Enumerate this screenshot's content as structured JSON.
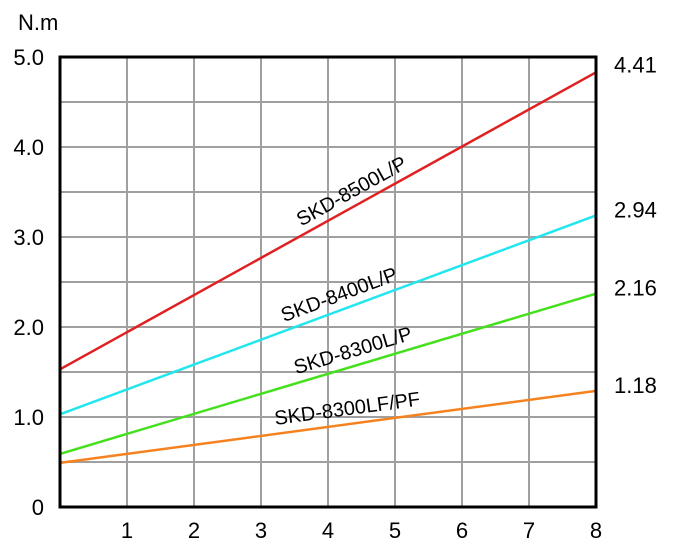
{
  "chart_data": {
    "type": "line",
    "ylabel": "N.m",
    "xlim": [
      0,
      8
    ],
    "ylim": [
      0,
      5
    ],
    "grid": true,
    "legend": "inline labels along lines",
    "x_ticks": [
      "1",
      "2",
      "3",
      "4",
      "5",
      "6",
      "7",
      "8"
    ],
    "y_ticks": [
      {
        "value": 0,
        "label": "0"
      },
      {
        "value": 1,
        "label": "1.0"
      },
      {
        "value": 2,
        "label": "2.0"
      },
      {
        "value": 3,
        "label": "3.0"
      },
      {
        "value": 4,
        "label": "4.0"
      },
      {
        "value": 5,
        "label": "5.0"
      }
    ],
    "series": [
      {
        "name": "SKD-8500L/P",
        "color": "#e02020",
        "x": [
          0,
          8
        ],
        "y": [
          1.53,
          4.83
        ],
        "end_label": "4.41"
      },
      {
        "name": "SKD-8400L/P",
        "color": "#22e6ee",
        "x": [
          0,
          8
        ],
        "y": [
          1.03,
          3.24
        ],
        "end_label": "2.94"
      },
      {
        "name": "SKD-8300L/P",
        "color": "#44e01c",
        "x": [
          0,
          8
        ],
        "y": [
          0.59,
          2.37
        ],
        "end_label": "2.16"
      },
      {
        "name": "SKD-8300LF/PF",
        "color": "#f5821f",
        "x": [
          0,
          8
        ],
        "y": [
          0.49,
          1.29
        ],
        "end_label": "1.18"
      }
    ]
  }
}
